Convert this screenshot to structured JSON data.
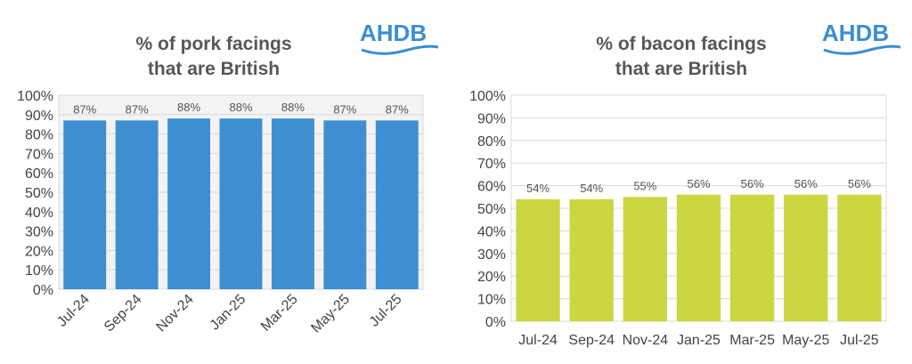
{
  "brand": {
    "logo_text": "AHDB",
    "logo_color": "#3b8fd0"
  },
  "chart_data": [
    {
      "type": "bar",
      "title": "% of pork facings that are British",
      "title_lines": [
        "% of pork facings",
        "that are British"
      ],
      "categories": [
        "Jul-24",
        "Sep-24",
        "Nov-24",
        "Jan-25",
        "Mar-25",
        "May-25",
        "Jul-25"
      ],
      "values": [
        87,
        87,
        88,
        88,
        88,
        87,
        87
      ],
      "data_labels": [
        "87%",
        "87%",
        "88%",
        "88%",
        "88%",
        "87%",
        "87%"
      ],
      "y_ticks": [
        "0%",
        "10%",
        "20%",
        "30%",
        "40%",
        "50%",
        "60%",
        "70%",
        "80%",
        "90%",
        "100%"
      ],
      "ylim": [
        0,
        100
      ],
      "bar_color": "#3d8fd1",
      "plot_background": "#f3f3f3",
      "grid": true,
      "x_labels_rotated": true
    },
    {
      "type": "bar",
      "title": "% of bacon facings that are British",
      "title_lines": [
        "% of bacon facings",
        "that are British"
      ],
      "categories": [
        "Jul-24",
        "Sep-24",
        "Nov-24",
        "Jan-25",
        "Mar-25",
        "May-25",
        "Jul-25"
      ],
      "values": [
        54,
        54,
        55,
        56,
        56,
        56,
        56
      ],
      "data_labels": [
        "54%",
        "54%",
        "55%",
        "56%",
        "56%",
        "56%",
        "56%"
      ],
      "y_ticks": [
        "0%",
        "10%",
        "20%",
        "30%",
        "40%",
        "50%",
        "60%",
        "70%",
        "80%",
        "90%",
        "100%"
      ],
      "ylim": [
        0,
        100
      ],
      "bar_color": "#cbd641",
      "plot_background": "#ffffff",
      "grid": true,
      "x_labels_rotated": false
    }
  ]
}
